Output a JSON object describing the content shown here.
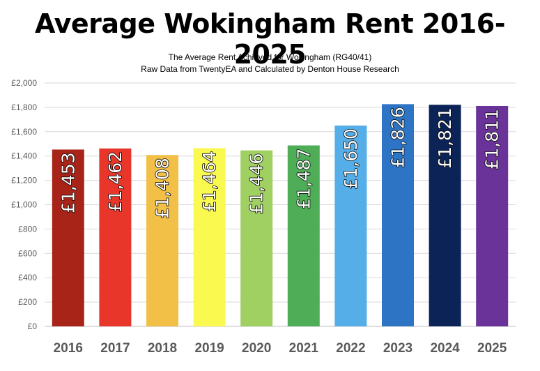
{
  "chart_data": {
    "type": "bar",
    "title": "Average Wokingham Rent 2016-2025",
    "subtitle_lines": [
      "The Average Rent Achieved for Wokingham (RG40/41)",
      "Raw Data from TwentyEA and Calculated by Denton House Research"
    ],
    "categories": [
      "2016",
      "2017",
      "2018",
      "2019",
      "2020",
      "2021",
      "2022",
      "2023",
      "2024",
      "2025"
    ],
    "values": [
      1453,
      1462,
      1408,
      1464,
      1446,
      1487,
      1650,
      1826,
      1821,
      1811
    ],
    "data_labels": [
      "£1,453",
      "£1,462",
      "£1,408",
      "£1,464",
      "£1,446",
      "£1,487",
      "£1,650",
      "£1,826",
      "£1,821",
      "£1,811"
    ],
    "bar_colors": [
      "#a82418",
      "#e8362a",
      "#f2bf47",
      "#f9f94f",
      "#a0cf62",
      "#4fad57",
      "#55aee8",
      "#2e74c4",
      "#0c2358",
      "#6a3399"
    ],
    "ylim": [
      0,
      2000
    ],
    "yticks": [
      0,
      200,
      400,
      600,
      800,
      1000,
      1200,
      1400,
      1600,
      1800,
      2000
    ],
    "ytick_labels": [
      "£0",
      "£200",
      "£400",
      "£600",
      "£800",
      "£1,000",
      "£1,200",
      "£1,400",
      "£1,600",
      "£1,800",
      "£2,000"
    ],
    "xlabel": "",
    "ylabel": "",
    "grid": true,
    "legend": "none"
  }
}
